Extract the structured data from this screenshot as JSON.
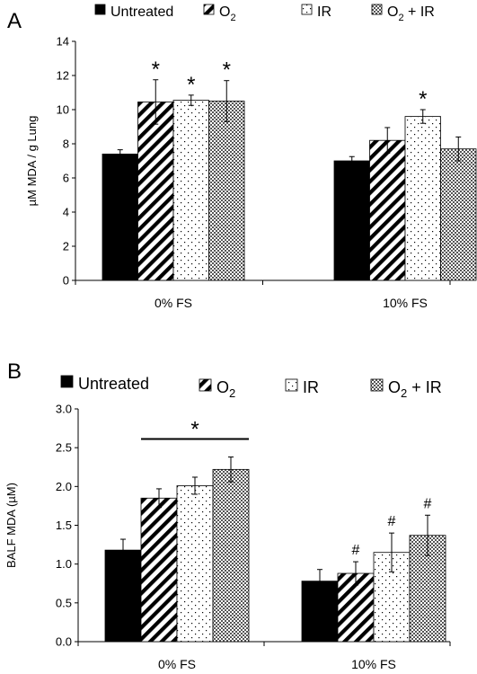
{
  "chart_data": [
    {
      "type": "bar",
      "panel_label": "A",
      "categories": [
        "0% FS",
        "10% FS"
      ],
      "series": [
        {
          "name": "Untreated",
          "pattern": "solid",
          "values": [
            7.4,
            7.0
          ],
          "errors": [
            0.25,
            0.25
          ]
        },
        {
          "name": "O2",
          "pattern": "diagonal",
          "values": [
            10.45,
            8.2
          ],
          "errors": [
            1.3,
            0.75
          ]
        },
        {
          "name": "IR",
          "pattern": "dots",
          "values": [
            10.55,
            9.6
          ],
          "errors": [
            0.3,
            0.4
          ]
        },
        {
          "name": "O2 + IR",
          "pattern": "checker",
          "values": [
            10.5,
            7.7
          ],
          "errors": [
            1.2,
            0.7
          ]
        }
      ],
      "ylabel": "µM MDA / g Lung",
      "xlabel": "",
      "ylim": [
        0,
        14
      ],
      "yticks": [
        "0",
        "2",
        "4",
        "6",
        "8",
        "10",
        "12",
        "14"
      ],
      "legend_position": "top",
      "significance": [
        {
          "category": 0,
          "series": 1,
          "symbol": "*"
        },
        {
          "category": 0,
          "series": 2,
          "symbol": "*"
        },
        {
          "category": 0,
          "series": 3,
          "symbol": "*"
        },
        {
          "category": 1,
          "series": 2,
          "symbol": "*"
        }
      ]
    },
    {
      "type": "bar",
      "panel_label": "B",
      "categories": [
        "0% FS",
        "10% FS"
      ],
      "series": [
        {
          "name": "Untreated",
          "pattern": "solid",
          "values": [
            1.18,
            0.78
          ],
          "errors": [
            0.14,
            0.15
          ]
        },
        {
          "name": "O2",
          "pattern": "diagonal",
          "values": [
            1.85,
            0.88
          ],
          "errors": [
            0.12,
            0.15
          ]
        },
        {
          "name": "IR",
          "pattern": "dots",
          "values": [
            2.01,
            1.15
          ],
          "errors": [
            0.11,
            0.25
          ]
        },
        {
          "name": "O2 + IR",
          "pattern": "checker",
          "values": [
            2.22,
            1.37
          ],
          "errors": [
            0.16,
            0.26
          ]
        }
      ],
      "ylabel": "BALF MDA  (µM)",
      "xlabel": "",
      "ylim": [
        0,
        3.0
      ],
      "yticks": [
        "0.0",
        "0.5",
        "1.0",
        "1.5",
        "2.0",
        "2.5",
        "3.0"
      ],
      "legend_position": "top",
      "significance": [
        {
          "category": 0,
          "series_range": [
            1,
            3
          ],
          "symbol": "*",
          "bracket": true
        },
        {
          "category": 1,
          "series": 1,
          "symbol": "#"
        },
        {
          "category": 1,
          "series": 2,
          "symbol": "#"
        },
        {
          "category": 1,
          "series": 3,
          "symbol": "#"
        }
      ]
    }
  ]
}
